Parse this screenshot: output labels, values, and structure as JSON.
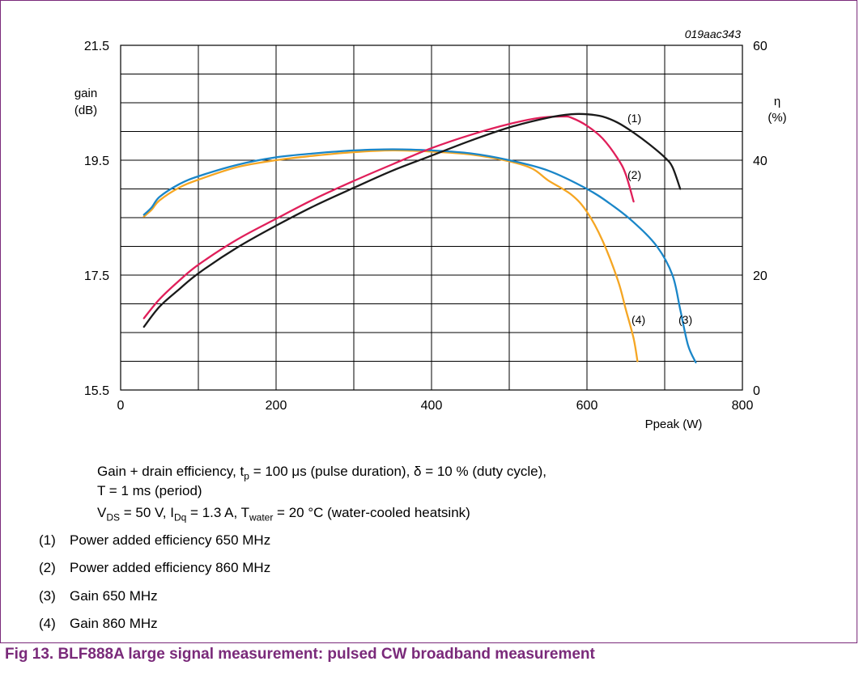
{
  "figure_code": "019aac343",
  "axes": {
    "left_label_line1": "gain",
    "left_label_line2": "(dB)",
    "right_label_line1": "η",
    "right_label_line2": "(%)",
    "x_label": "Ppeak (W)"
  },
  "notes": {
    "line1_a": "Gain + drain efficiency, t",
    "line1_sub": "p",
    "line1_b": " = 100 μs (pulse duration), δ = 10 % (duty cycle),",
    "line2": "T = 1 ms (period)",
    "line3_a": "V",
    "line3_sub1": "DS",
    "line3_b": " = 50 V, I",
    "line3_sub2": "Dq",
    "line3_c": " = 1.3 A, T",
    "line3_sub3": "water",
    "line3_d": " = 20 °C (water-cooled heatsink)"
  },
  "legend": [
    {
      "num": "(1)",
      "text": "Power added efficiency 650 MHz"
    },
    {
      "num": "(2)",
      "text": "Power added efficiency 860 MHz"
    },
    {
      "num": "(3)",
      "text": "Gain 650 MHz"
    },
    {
      "num": "(4)",
      "text": "Gain 860 MHz"
    }
  ],
  "caption": "Fig 13.  BLF888A large signal measurement: pulsed CW broadband measurement",
  "chart_data": {
    "type": "line",
    "x_ticks": [
      "0",
      "200",
      "400",
      "600",
      "800"
    ],
    "y_left_ticks": [
      "21.5",
      "19.5",
      "17.5",
      "15.5"
    ],
    "y_right_ticks": [
      "60",
      "40",
      "20",
      "0"
    ],
    "xlim": [
      0,
      800
    ],
    "ylim_left": [
      15.5,
      21.5
    ],
    "ylim_right": [
      0,
      60
    ],
    "grid": true,
    "colors": {
      "s1": "#1a1a1a",
      "s2": "#e01f5a",
      "s3": "#1a86c8",
      "s4": "#f5a623"
    },
    "series": [
      {
        "name": "(1)",
        "axis": "right",
        "color": "#1a1a1a",
        "points": [
          [
            30,
            11
          ],
          [
            50,
            14.5
          ],
          [
            75,
            17.5
          ],
          [
            100,
            20.3
          ],
          [
            150,
            24.8
          ],
          [
            200,
            28.6
          ],
          [
            250,
            32.1
          ],
          [
            300,
            35.2
          ],
          [
            350,
            38.2
          ],
          [
            400,
            40.8
          ],
          [
            450,
            43.4
          ],
          [
            500,
            45.7
          ],
          [
            550,
            47.4
          ],
          [
            580,
            48.0
          ],
          [
            600,
            48.0
          ],
          [
            620,
            47.6
          ],
          [
            640,
            46.5
          ],
          [
            660,
            44.8
          ],
          [
            680,
            42.8
          ],
          [
            700,
            40.5
          ],
          [
            710,
            38.8
          ],
          [
            720,
            35.0
          ]
        ]
      },
      {
        "name": "(2)",
        "axis": "right",
        "color": "#e01f5a",
        "points": [
          [
            30,
            12.5
          ],
          [
            50,
            15.8
          ],
          [
            75,
            19.0
          ],
          [
            100,
            21.8
          ],
          [
            150,
            26.2
          ],
          [
            200,
            29.8
          ],
          [
            250,
            33.3
          ],
          [
            300,
            36.4
          ],
          [
            350,
            39.3
          ],
          [
            400,
            42.1
          ],
          [
            450,
            44.4
          ],
          [
            500,
            46.3
          ],
          [
            540,
            47.4
          ],
          [
            570,
            47.6
          ],
          [
            580,
            47.4
          ],
          [
            600,
            46.0
          ],
          [
            620,
            43.8
          ],
          [
            640,
            40.2
          ],
          [
            650,
            37.5
          ],
          [
            660,
            32.8
          ]
        ]
      },
      {
        "name": "(3)",
        "axis": "left",
        "color": "#1a86c8",
        "points": [
          [
            30,
            18.55
          ],
          [
            40,
            18.68
          ],
          [
            50,
            18.86
          ],
          [
            75,
            19.08
          ],
          [
            100,
            19.22
          ],
          [
            150,
            19.42
          ],
          [
            200,
            19.55
          ],
          [
            250,
            19.62
          ],
          [
            300,
            19.67
          ],
          [
            350,
            19.69
          ],
          [
            400,
            19.67
          ],
          [
            450,
            19.62
          ],
          [
            500,
            19.5
          ],
          [
            550,
            19.32
          ],
          [
            600,
            19.0
          ],
          [
            630,
            18.74
          ],
          [
            660,
            18.42
          ],
          [
            690,
            18.0
          ],
          [
            710,
            17.5
          ],
          [
            720,
            16.9
          ],
          [
            730,
            16.28
          ],
          [
            740,
            15.98
          ]
        ]
      },
      {
        "name": "(4)",
        "axis": "left",
        "color": "#f5a623",
        "points": [
          [
            30,
            18.52
          ],
          [
            40,
            18.64
          ],
          [
            50,
            18.8
          ],
          [
            75,
            19.02
          ],
          [
            100,
            19.16
          ],
          [
            150,
            19.38
          ],
          [
            200,
            19.5
          ],
          [
            250,
            19.58
          ],
          [
            300,
            19.64
          ],
          [
            350,
            19.67
          ],
          [
            400,
            19.65
          ],
          [
            450,
            19.6
          ],
          [
            500,
            19.48
          ],
          [
            530,
            19.35
          ],
          [
            550,
            19.15
          ],
          [
            580,
            18.9
          ],
          [
            600,
            18.6
          ],
          [
            620,
            18.1
          ],
          [
            640,
            17.4
          ],
          [
            650,
            16.9
          ],
          [
            660,
            16.4
          ],
          [
            665,
            16.0
          ]
        ]
      }
    ],
    "curve_labels": [
      "(1)",
      "(2)",
      "(3)",
      "(4)"
    ]
  }
}
